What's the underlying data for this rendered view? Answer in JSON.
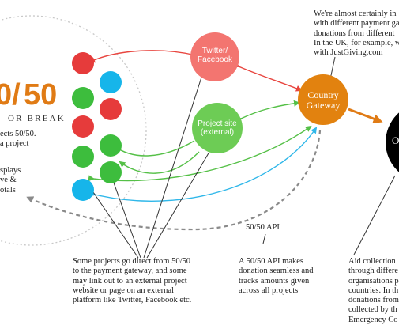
{
  "brand": {
    "logo_left": "0/",
    "logo_right": "50",
    "tagline": "OR BREAK",
    "colors": {
      "orange": "#e07b15",
      "red": "#e63b3b",
      "green": "#3dbd3d",
      "blue": "#16b5ea"
    }
  },
  "left_text": {
    "line1": "ects 50/50.",
    "line2": "a project",
    "line3": "splays",
    "line4": "ve &",
    "line5": "otals"
  },
  "nodes": {
    "twitter": {
      "line1": "Twitter/",
      "line2": "Facebook",
      "color": "#f37570"
    },
    "project_site": {
      "line1": "Project site",
      "line2": "(external)",
      "color": "#6dcc55"
    },
    "gateway": {
      "line1": "Country",
      "line2": "Gateway",
      "color": "#e2820f"
    },
    "black_node": {
      "label": "O",
      "color": "#000000"
    }
  },
  "project_dots": [
    {
      "color": "red"
    },
    {
      "color": "blue"
    },
    {
      "color": "green"
    },
    {
      "color": "red"
    },
    {
      "color": "red"
    },
    {
      "color": "green"
    },
    {
      "color": "green"
    },
    {
      "color": "green"
    },
    {
      "color": "blue"
    }
  ],
  "api_label": "50/50 API",
  "top_note": {
    "line1": "We're almost certainly in",
    "line2": "with different payment ga",
    "line3": "donations from different",
    "line4": "In the UK, for example, w",
    "line5": "with JustGiving.com"
  },
  "bottom_notes": {
    "projects": {
      "line1": "Some projects go direct from 50/50",
      "line2": "to the payment gateway, and some",
      "line3": "may link out to an external project",
      "line4": "website or page on an external",
      "line5": "platform like Twitter, Facebook etc."
    },
    "api": {
      "line1": "A 50/50 API makes",
      "line2": "donation seamless and",
      "line3": "tracks amounts given",
      "line4": "across all projects"
    },
    "aid": {
      "line1": "Aid collection",
      "line2": "through differe",
      "line3": "organisations p",
      "line4": "countries. In th",
      "line5": "donations from",
      "line6": "collected by th",
      "line7": "Emergency Co"
    }
  }
}
